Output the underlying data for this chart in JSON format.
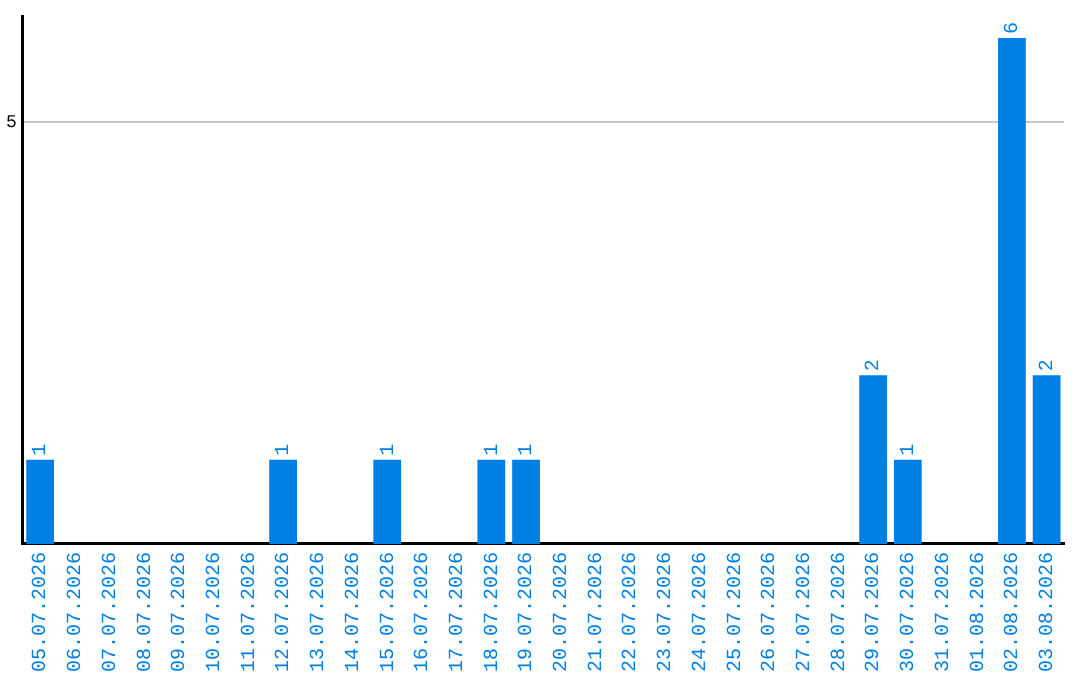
{
  "chart_data": {
    "type": "bar",
    "categories": [
      "05.07.2026",
      "06.07.2026",
      "07.07.2026",
      "08.07.2026",
      "09.07.2026",
      "10.07.2026",
      "11.07.2026",
      "12.07.2026",
      "13.07.2026",
      "14.07.2026",
      "15.07.2026",
      "16.07.2026",
      "17.07.2026",
      "18.07.2026",
      "19.07.2026",
      "20.07.2026",
      "21.07.2026",
      "22.07.2026",
      "23.07.2026",
      "24.07.2026",
      "25.07.2026",
      "26.07.2026",
      "27.07.2026",
      "28.07.2026",
      "29.07.2026",
      "30.07.2026",
      "31.07.2026",
      "01.08.2026",
      "02.08.2026",
      "03.08.2026"
    ],
    "values": [
      1,
      0,
      0,
      0,
      0,
      0,
      0,
      1,
      0,
      0,
      1,
      0,
      0,
      1,
      1,
      0,
      0,
      0,
      0,
      0,
      0,
      0,
      0,
      0,
      2,
      1,
      0,
      0,
      6,
      2
    ],
    "value_labels": [
      "1",
      null,
      null,
      null,
      null,
      null,
      null,
      "1",
      null,
      null,
      "1",
      null,
      null,
      "1",
      "1",
      null,
      null,
      null,
      null,
      null,
      null,
      null,
      null,
      null,
      "2",
      "1",
      null,
      null,
      "6",
      "2"
    ],
    "color": "#0080e4",
    "ylim": [
      0,
      6.25
    ],
    "yticks": [
      5
    ],
    "grid": "y",
    "legend": false
  }
}
